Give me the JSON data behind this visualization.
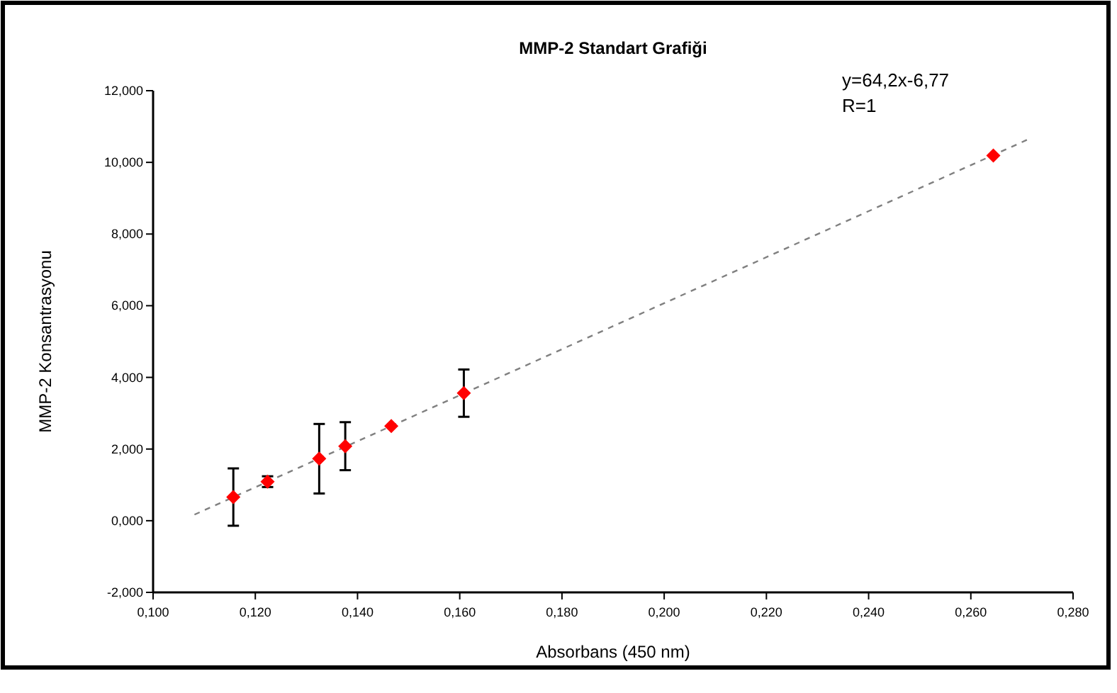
{
  "chart_data": {
    "type": "scatter",
    "title": "MMP-2 Standart Grafiği",
    "xlabel": "Absorbans (450 nm)",
    "ylabel": "MMP-2 Konsantrasyonu",
    "annotations": [
      "y=64,2x-6,77",
      "R=1"
    ],
    "xlim": [
      0.1,
      0.28
    ],
    "ylim": [
      -2,
      12
    ],
    "xticks": [
      {
        "value": 0.1,
        "label": "0,100"
      },
      {
        "value": 0.12,
        "label": "0,120"
      },
      {
        "value": 0.14,
        "label": "0,140"
      },
      {
        "value": 0.16,
        "label": "0,160"
      },
      {
        "value": 0.18,
        "label": "0,180"
      },
      {
        "value": 0.2,
        "label": "0,200"
      },
      {
        "value": 0.22,
        "label": "0,220"
      },
      {
        "value": 0.24,
        "label": "0,240"
      },
      {
        "value": 0.26,
        "label": "0,260"
      },
      {
        "value": 0.28,
        "label": "0,280"
      }
    ],
    "yticks": [
      {
        "value": -2,
        "label": "-2,000"
      },
      {
        "value": 0,
        "label": "0,000"
      },
      {
        "value": 2,
        "label": "2,000"
      },
      {
        "value": 4,
        "label": "4,000"
      },
      {
        "value": 6,
        "label": "6,000"
      },
      {
        "value": 8,
        "label": "8,000"
      },
      {
        "value": 10,
        "label": "10,000"
      },
      {
        "value": 12,
        "label": "12,000"
      }
    ],
    "grid": false,
    "series": [
      {
        "color": "#ff0000",
        "marker": "diamond",
        "x": [
          0.1157,
          0.1224,
          0.1325,
          0.1376,
          0.1466,
          0.1608,
          0.2644
        ],
        "values": [
          0.66,
          1.09,
          1.73,
          2.08,
          2.64,
          3.56,
          10.19
        ],
        "errors": [
          0.8,
          0.15,
          0.97,
          0.67,
          null,
          0.66,
          null
        ]
      },
      {
        "type": "line",
        "color": "#808080",
        "line_style": "dashed",
        "marker": "none",
        "x": [
          0.1081,
          0.2718
        ],
        "values": [
          0.17,
          10.68
        ]
      }
    ]
  }
}
